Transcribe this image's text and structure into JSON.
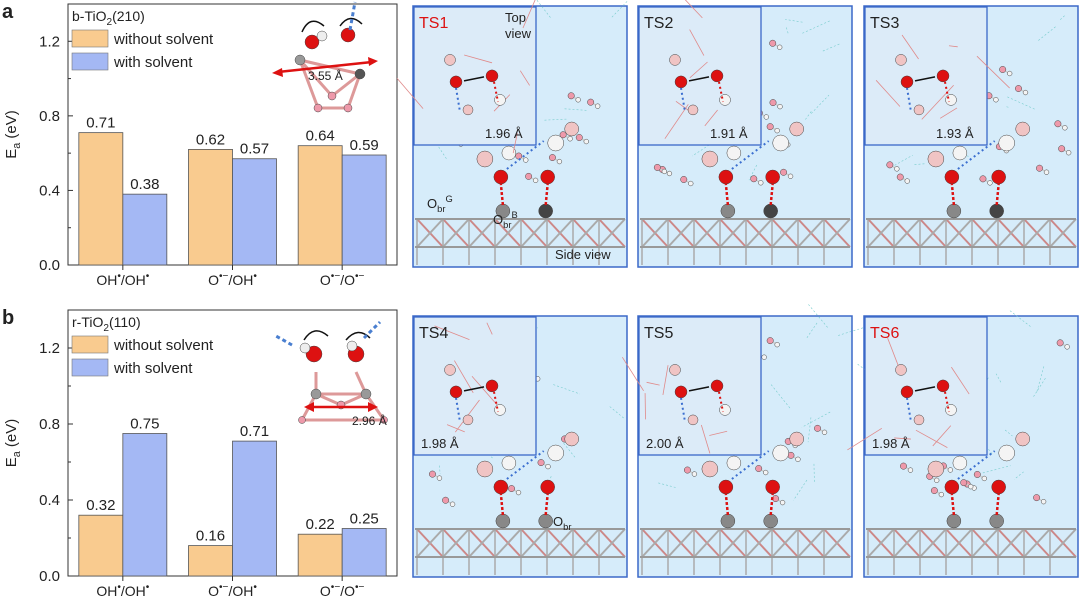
{
  "panels": [
    {
      "letter": "a",
      "surface": "b-TiO₂(210)",
      "legend": [
        "without solvent",
        "with solvent"
      ],
      "distance": "3.55 Å",
      "ts": [
        {
          "label": "TS1",
          "highlight": true,
          "dist": "1.96 Å",
          "top_view": "Top view",
          "side_view": "Side view",
          "site1": "Obr^G",
          "site2": "Obr^B"
        },
        {
          "label": "TS2",
          "highlight": false,
          "dist": "1.91 Å"
        },
        {
          "label": "TS3",
          "highlight": false,
          "dist": "1.93 Å"
        }
      ]
    },
    {
      "letter": "b",
      "surface": "r-TiO₂(110)",
      "legend": [
        "without solvent",
        "with solvent"
      ],
      "distance": "2.96 Å",
      "ts": [
        {
          "label": "TS4",
          "highlight": false,
          "dist": "1.98 Å",
          "site": "Obr"
        },
        {
          "label": "TS5",
          "highlight": false,
          "dist": "2.00 Å"
        },
        {
          "label": "TS6",
          "highlight": true,
          "dist": "1.98 Å"
        }
      ]
    }
  ],
  "chart_data": [
    {
      "type": "bar",
      "title": "b-TiO₂(210)",
      "ylabel": "Ea (eV)",
      "xlabel": "",
      "ylim": [
        0,
        1.4
      ],
      "yticks": [
        "0.0",
        "0.4",
        "0.8",
        "1.2"
      ],
      "categories": [
        "OH•/OH•",
        "O•−/OH•",
        "O•−/O•−"
      ],
      "series": [
        {
          "name": "without solvent",
          "values": [
            0.71,
            0.62,
            0.64
          ],
          "labels": [
            "0.71",
            "0.62",
            "0.64"
          ],
          "color": "#F9CB8F"
        },
        {
          "name": "with solvent",
          "values": [
            0.38,
            0.57,
            0.59
          ],
          "labels": [
            "0.38",
            "0.57",
            "0.59"
          ],
          "color": "#A4B8F4"
        }
      ]
    },
    {
      "type": "bar",
      "title": "r-TiO₂(110)",
      "ylabel": "Ea (eV)",
      "xlabel": "",
      "ylim": [
        0,
        1.4
      ],
      "yticks": [
        "0.0",
        "0.4",
        "0.8",
        "1.2"
      ],
      "categories": [
        "OH•/OH•",
        "O•−/OH•",
        "O•−/O•−"
      ],
      "series": [
        {
          "name": "without solvent",
          "values": [
            0.32,
            0.16,
            0.22
          ],
          "labels": [
            "0.32",
            "0.16",
            "0.22"
          ],
          "color": "#F9CB8F"
        },
        {
          "name": "with solvent",
          "values": [
            0.75,
            0.71,
            0.25
          ],
          "labels": [
            "0.75",
            "0.71",
            "0.25"
          ],
          "color": "#A4B8F4"
        }
      ]
    }
  ]
}
